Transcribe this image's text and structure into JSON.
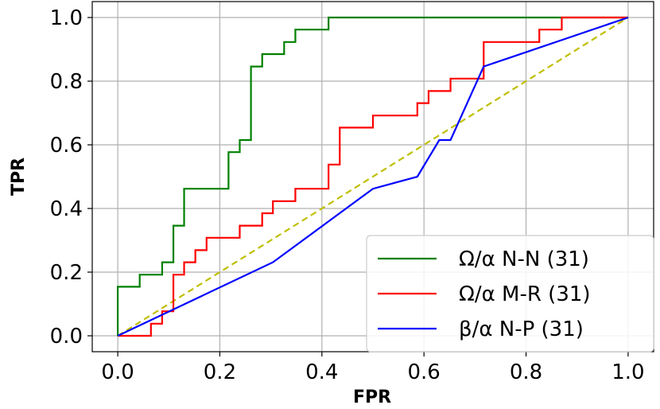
{
  "chart_data": {
    "type": "line",
    "xlabel": "FPR",
    "ylabel": "TPR",
    "xlim": [
      -0.05,
      1.05
    ],
    "ylim": [
      -0.05,
      1.05
    ],
    "xticks": [
      "0.0",
      "0.2",
      "0.4",
      "0.6",
      "0.8",
      "1.0"
    ],
    "yticks": [
      "0.0",
      "0.2",
      "0.4",
      "0.6",
      "0.8",
      "1.0"
    ],
    "grid": true,
    "legend_position": "bottom-right",
    "series": [
      {
        "name": "Ω/α N-N (31)",
        "color": "#008000",
        "style": "solid",
        "points": [
          [
            0,
            0
          ],
          [
            0,
            0.154
          ],
          [
            0.043,
            0.154
          ],
          [
            0.043,
            0.192
          ],
          [
            0.087,
            0.192
          ],
          [
            0.087,
            0.231
          ],
          [
            0.109,
            0.231
          ],
          [
            0.109,
            0.346
          ],
          [
            0.13,
            0.346
          ],
          [
            0.13,
            0.462
          ],
          [
            0.217,
            0.462
          ],
          [
            0.217,
            0.577
          ],
          [
            0.239,
            0.577
          ],
          [
            0.239,
            0.615
          ],
          [
            0.261,
            0.615
          ],
          [
            0.261,
            0.846
          ],
          [
            0.283,
            0.846
          ],
          [
            0.283,
            0.885
          ],
          [
            0.326,
            0.885
          ],
          [
            0.326,
            0.923
          ],
          [
            0.348,
            0.923
          ],
          [
            0.348,
            0.962
          ],
          [
            0.413,
            0.962
          ],
          [
            0.413,
            1.0
          ],
          [
            1.0,
            1.0
          ]
        ]
      },
      {
        "name": "Ω/α M-R (31)",
        "color": "#ff0000",
        "style": "solid",
        "points": [
          [
            0,
            0
          ],
          [
            0.065,
            0
          ],
          [
            0.065,
            0.038
          ],
          [
            0.087,
            0.038
          ],
          [
            0.087,
            0.077
          ],
          [
            0.109,
            0.077
          ],
          [
            0.109,
            0.192
          ],
          [
            0.13,
            0.192
          ],
          [
            0.13,
            0.231
          ],
          [
            0.152,
            0.231
          ],
          [
            0.152,
            0.269
          ],
          [
            0.174,
            0.269
          ],
          [
            0.174,
            0.308
          ],
          [
            0.239,
            0.308
          ],
          [
            0.239,
            0.346
          ],
          [
            0.283,
            0.346
          ],
          [
            0.283,
            0.385
          ],
          [
            0.304,
            0.385
          ],
          [
            0.304,
            0.423
          ],
          [
            0.348,
            0.423
          ],
          [
            0.348,
            0.462
          ],
          [
            0.413,
            0.462
          ],
          [
            0.413,
            0.538
          ],
          [
            0.435,
            0.538
          ],
          [
            0.435,
            0.654
          ],
          [
            0.5,
            0.654
          ],
          [
            0.5,
            0.692
          ],
          [
            0.587,
            0.692
          ],
          [
            0.587,
            0.731
          ],
          [
            0.609,
            0.731
          ],
          [
            0.609,
            0.769
          ],
          [
            0.652,
            0.769
          ],
          [
            0.652,
            0.808
          ],
          [
            0.717,
            0.808
          ],
          [
            0.717,
            0.923
          ],
          [
            0.826,
            0.923
          ],
          [
            0.826,
            0.962
          ],
          [
            0.87,
            0.962
          ],
          [
            0.87,
            1.0
          ],
          [
            1.0,
            1.0
          ]
        ]
      },
      {
        "name": "β/α N-P (31)",
        "color": "#0000ff",
        "style": "solid",
        "points": [
          [
            0,
            0
          ],
          [
            0.304,
            0.231
          ],
          [
            0.5,
            0.462
          ],
          [
            0.587,
            0.5
          ],
          [
            0.63,
            0.615
          ],
          [
            0.652,
            0.615
          ],
          [
            0.717,
            0.846
          ],
          [
            1.0,
            1.0
          ]
        ]
      },
      {
        "name": "",
        "color": "#bfbf00",
        "style": "dashed",
        "points": [
          [
            0,
            0
          ],
          [
            1,
            1
          ]
        ]
      }
    ]
  }
}
